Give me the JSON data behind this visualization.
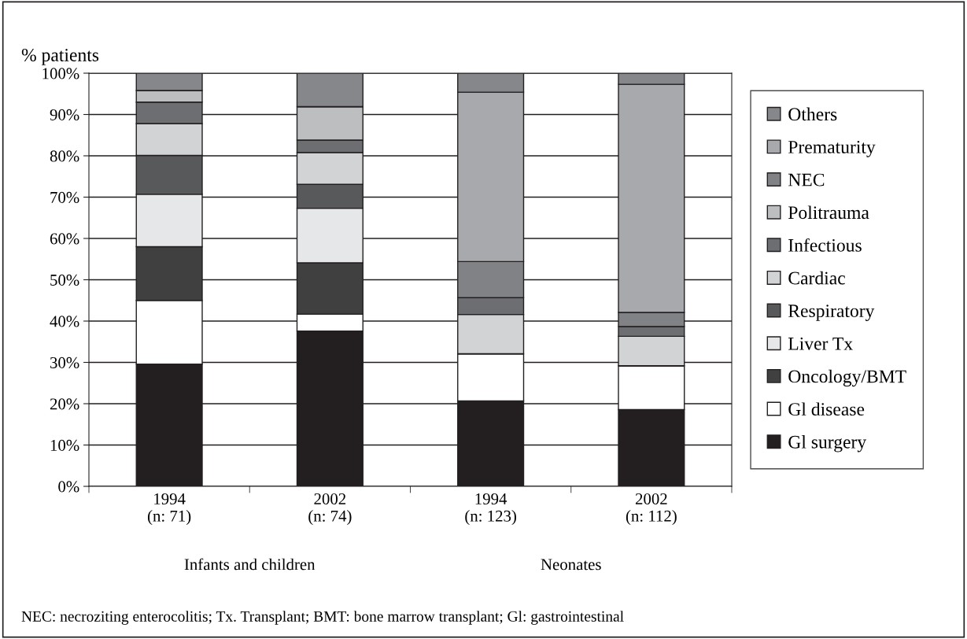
{
  "chart_data": {
    "type": "bar",
    "stacked": true,
    "ylabel": "% patients",
    "categories": [
      "1994\n(n: 71)",
      "2002\n(n: 74)",
      "1994\n(n: 123)",
      "2002\n(n: 112)"
    ],
    "series": [
      {
        "name": "Gl surgery",
        "color": "#231f20",
        "values": [
          29.6,
          37.6,
          20.7,
          18.6
        ]
      },
      {
        "name": "Gl disease",
        "color": "#ffffff",
        "values": [
          15.4,
          4.1,
          11.4,
          10.6
        ]
      },
      {
        "name": "Oncology/BMT",
        "color": "#404040",
        "values": [
          13.0,
          12.4,
          0,
          0
        ]
      },
      {
        "name": "Liver Tx",
        "color": "#e6e7e8",
        "values": [
          12.7,
          13.2,
          0,
          0
        ]
      },
      {
        "name": "Respiratory",
        "color": "#58595b",
        "values": [
          9.4,
          5.8,
          0,
          0
        ]
      },
      {
        "name": "Cardiac",
        "color": "#d1d3d4",
        "values": [
          7.7,
          7.7,
          9.5,
          7.1
        ]
      },
      {
        "name": "Infectious",
        "color": "#6d6e71",
        "values": [
          5.2,
          3.0,
          4.1,
          2.4
        ]
      },
      {
        "name": "Politrauma",
        "color": "#bcbec0",
        "values": [
          2.8,
          8.1,
          0,
          0
        ]
      },
      {
        "name": "NEC",
        "color": "#808285",
        "values": [
          0,
          0,
          8.7,
          3.4
        ]
      },
      {
        "name": "Prematurity",
        "color": "#a7a9ac",
        "values": [
          0,
          0,
          41.0,
          55.2
        ]
      },
      {
        "name": "Others",
        "color": "#86878a",
        "values": [
          4.2,
          8.1,
          4.6,
          2.7
        ]
      }
    ],
    "ylim": [
      0,
      100
    ],
    "yticks": [
      {
        "value": 0,
        "label": "0%"
      },
      {
        "value": 10,
        "label": "10%"
      },
      {
        "value": 20,
        "label": "20%"
      },
      {
        "value": 30,
        "label": "30%"
      },
      {
        "value": 40,
        "label": "40%"
      },
      {
        "value": 50,
        "label": "50%"
      },
      {
        "value": 60,
        "label": "60%"
      },
      {
        "value": 70,
        "label": "70%"
      },
      {
        "value": 80,
        "label": "80%"
      },
      {
        "value": 90,
        "label": "90%"
      },
      {
        "value": 100,
        "label": "100%"
      }
    ],
    "grid": "y",
    "legend": "right",
    "annotations": [
      "Infants and children",
      "Neonates",
      "NEC: necroziting enterocolitis; Tx. Transplant; BMT: bone marrow transplant; Gl: gastrointestinal"
    ]
  }
}
